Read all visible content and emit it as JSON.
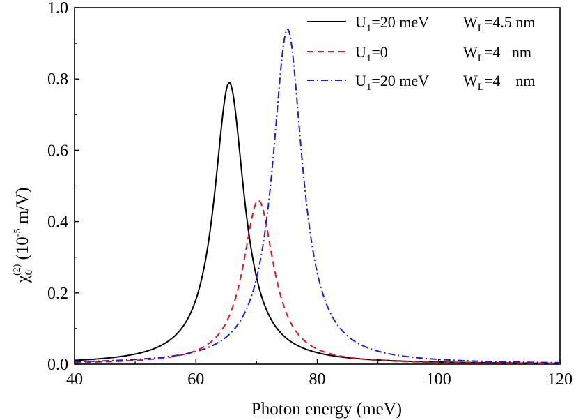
{
  "chart_data": {
    "type": "line",
    "xlabel": "Photon energy (meV)",
    "ylabel": {
      "symbol": "χ",
      "subscript": "0",
      "superscript": "(2)",
      "units_prefix": "(10",
      "units_exponent": "-5",
      "units_suffix": " m/V)"
    },
    "xlim": [
      40,
      120
    ],
    "ylim": [
      0.0,
      1.0
    ],
    "xticks": [
      "40",
      "60",
      "80",
      "100",
      "120"
    ],
    "yticks": [
      "0.0",
      "0.2",
      "0.4",
      "0.6",
      "0.8",
      "1.0"
    ],
    "grid": false,
    "legend_position": "top-right",
    "series": [
      {
        "name": "U1=20 meV WL=4.5 nm",
        "legend": {
          "u_main": "U",
          "u_sub": "1",
          "u_value": "=20 meV",
          "w_main": "W",
          "w_sub": "L",
          "w_value": "=4.5 nm"
        },
        "color": "#000000",
        "dash": "solid",
        "peak_energy": 65.5,
        "peak_value": 0.79,
        "half_width": 3.0
      },
      {
        "name": "U1=0 WL=4 nm",
        "legend": {
          "u_main": "U",
          "u_sub": "1",
          "u_value": "=0",
          "w_main": "W",
          "w_sub": "L",
          "w_value": "=4   nm"
        },
        "color": "#e8121c",
        "dash": "dashed",
        "peak_energy": 70.3,
        "peak_value": 0.46,
        "half_width": 3.1
      },
      {
        "name": "U1=20 meV WL=4 nm",
        "legend": {
          "u_main": "U",
          "u_sub": "1",
          "u_value": "=20 meV",
          "w_main": "W",
          "w_sub": "L",
          "w_value": "=4    nm"
        },
        "color": "#1a1ae6",
        "dash": "dash-dot",
        "peak_energy": 75.1,
        "peak_value": 0.94,
        "half_width": 3.0
      }
    ]
  }
}
